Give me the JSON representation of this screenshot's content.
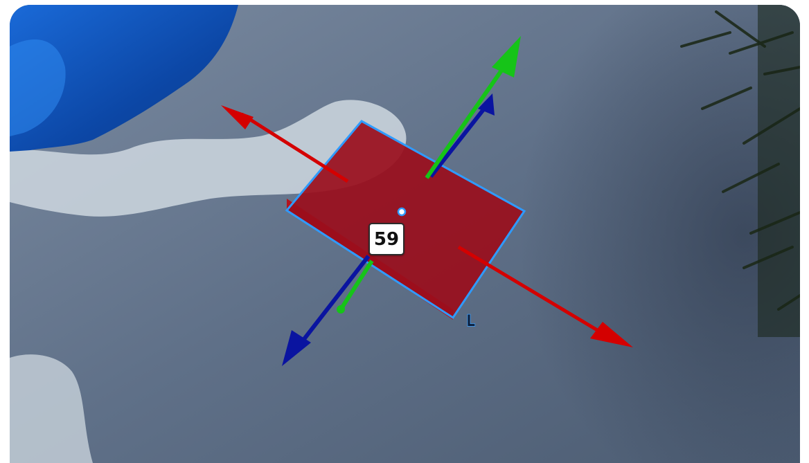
{
  "scene": {
    "colors": {
      "snow": "#5d6f86",
      "water": "#0d4fb8",
      "selection_outline": "#2f9bff",
      "part_fill": "#9a0e1c",
      "axis_x": "#d40000",
      "axis_y": "#16c418",
      "axis_z": "#0a14a0"
    },
    "icons": [
      "move-gizmo-icon",
      "pivot-point-icon"
    ]
  },
  "gizmo": {
    "size_label": "59",
    "local_space_indicator": "L"
  }
}
